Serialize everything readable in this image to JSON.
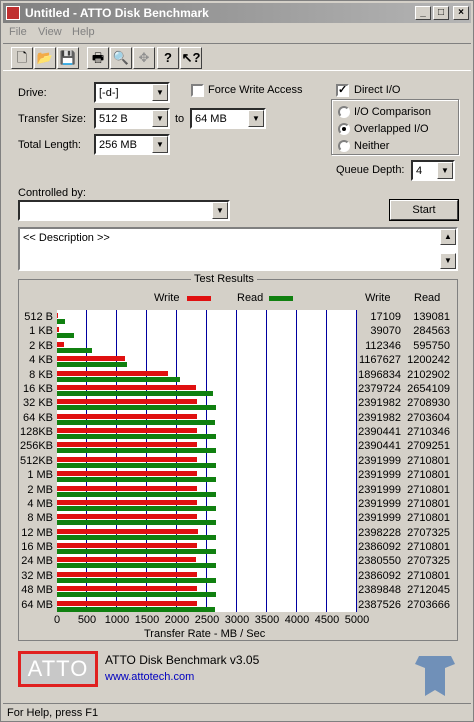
{
  "window": {
    "title": "Untitled - ATTO Disk Benchmark",
    "buttons": {
      "minimize": "_",
      "maximize": "□",
      "close": "×"
    }
  },
  "menu": [
    "File",
    "View",
    "Help"
  ],
  "toolbar": [
    "new-file-icon",
    "open-folder-icon",
    "save-icon",
    "print-icon",
    "print-preview-icon",
    "move-icon",
    "help-icon",
    "context-help-icon"
  ],
  "form": {
    "drive_label": "Drive:",
    "drive_value": "[-d-]",
    "transfer_size_label": "Transfer Size:",
    "transfer_from": "512 B",
    "to_label": "to",
    "transfer_to": "64 MB",
    "total_length_label": "Total Length:",
    "total_length": "256 MB",
    "force_write_label": "Force Write Access",
    "direct_io_label": "Direct I/O",
    "io_comparison_label": "I/O Comparison",
    "overlapped_io_label": "Overlapped I/O",
    "neither_label": "Neither",
    "queue_depth_label": "Queue Depth:",
    "queue_depth": "4",
    "controlled_by_label": "Controlled by:",
    "controlled_by_value": "",
    "start_label": "Start",
    "description": "<< Description >>"
  },
  "results": {
    "title": "Test Results",
    "write_legend": "Write",
    "read_legend": "Read",
    "write_header": "Write",
    "read_header": "Read",
    "x_label": "Transfer Rate - MB / Sec"
  },
  "chart_data": {
    "type": "bar",
    "orientation": "horizontal",
    "xlim": [
      0,
      5000
    ],
    "x_ticks": [
      "0",
      "500",
      "1000",
      "1500",
      "2000",
      "2500",
      "3000",
      "3500",
      "4000",
      "4500",
      "5000"
    ],
    "categories": [
      "512 B",
      "1 KB",
      "2 KB",
      "4 KB",
      "8 KB",
      "16 KB",
      "32 KB",
      "64 KB",
      "128KB",
      "256KB",
      "512KB",
      "1 MB",
      "2 MB",
      "4 MB",
      "8 MB",
      "12 MB",
      "16 MB",
      "24 MB",
      "32 MB",
      "48 MB",
      "64 MB"
    ],
    "series": [
      {
        "name": "Write",
        "color": "#e01010",
        "raw": [
          "17109",
          "39070",
          "112346",
          "1167627",
          "1896834",
          "2379724",
          "2391982",
          "2391982",
          "2390441",
          "2390441",
          "2391999",
          "2391999",
          "2391999",
          "2391999",
          "2391999",
          "2398228",
          "2386092",
          "2380550",
          "2386092",
          "2389848",
          "2387526"
        ]
      },
      {
        "name": "Read",
        "color": "#108010",
        "raw": [
          "139081",
          "284563",
          "595750",
          "1200242",
          "2102902",
          "2654109",
          "2708930",
          "2703604",
          "2710346",
          "2709251",
          "2710801",
          "2710801",
          "2710801",
          "2710801",
          "2710801",
          "2707325",
          "2710801",
          "2707325",
          "2710801",
          "2712045",
          "2703666"
        ]
      }
    ]
  },
  "footer": {
    "logo": "ATTO",
    "product": "ATTO Disk Benchmark v3.05",
    "url": "www.attotech.com",
    "status": "For Help, press F1"
  }
}
